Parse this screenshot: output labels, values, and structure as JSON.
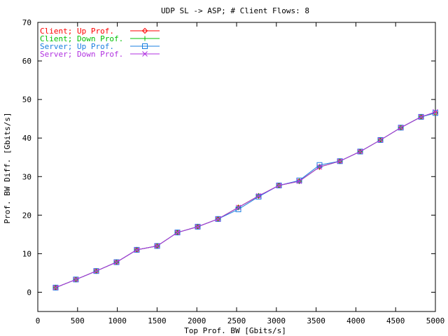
{
  "chart_data": {
    "type": "line",
    "title": "UDP SL -> ASP; # Client Flows: 8",
    "xlabel": "Top Prof. BW [Gbits/s]",
    "ylabel": "Prof. BW Diff. [Gbits/s]",
    "xlim": [
      0,
      5000
    ],
    "ylim": [
      -5,
      70
    ],
    "x_ticks": [
      0,
      500,
      1000,
      1500,
      2000,
      2500,
      3000,
      3500,
      4000,
      4500,
      5000
    ],
    "y_ticks": [
      0,
      10,
      20,
      30,
      40,
      50,
      60,
      70
    ],
    "grid": false,
    "legend_position": "top-left",
    "x": [
      224,
      479,
      735,
      990,
      1245,
      1501,
      1756,
      2011,
      2267,
      2522,
      2777,
      3033,
      3288,
      3543,
      3799,
      4054,
      4309,
      4565,
      4820,
      5000
    ],
    "series": [
      {
        "name": "Client;   Up Prof.",
        "color": "#ff0000",
        "marker": "diamond",
        "values": [
          1.2,
          3.3,
          5.5,
          7.8,
          11.0,
          12.0,
          15.5,
          17.0,
          19.0,
          22.0,
          25.0,
          27.7,
          28.8,
          32.5,
          34.0,
          36.5,
          39.5,
          42.7,
          45.5,
          46.5
        ]
      },
      {
        "name": "Client; Down Prof.",
        "color": "#00c000",
        "marker": "plus",
        "values": [
          1.2,
          3.3,
          5.5,
          7.8,
          11.0,
          12.0,
          15.5,
          17.0,
          19.0,
          22.0,
          25.0,
          27.7,
          28.8,
          32.5,
          34.0,
          36.5,
          39.5,
          42.7,
          45.5,
          46.5
        ]
      },
      {
        "name": "Server;   Up Prof.",
        "color": "#1a7fe0",
        "marker": "square",
        "values": [
          1.2,
          3.3,
          5.5,
          7.8,
          11.0,
          12.0,
          15.5,
          17.0,
          19.0,
          21.5,
          24.8,
          27.7,
          29.0,
          33.0,
          34.0,
          36.5,
          39.5,
          42.7,
          45.5,
          46.5
        ]
      },
      {
        "name": "Server; Down Prof.",
        "color": "#b030e0",
        "marker": "cross",
        "values": [
          1.2,
          3.3,
          5.5,
          7.8,
          11.0,
          12.0,
          15.5,
          17.0,
          19.0,
          22.0,
          25.0,
          27.7,
          28.8,
          32.5,
          34.0,
          36.5,
          39.5,
          42.7,
          45.5,
          46.8
        ]
      }
    ]
  }
}
